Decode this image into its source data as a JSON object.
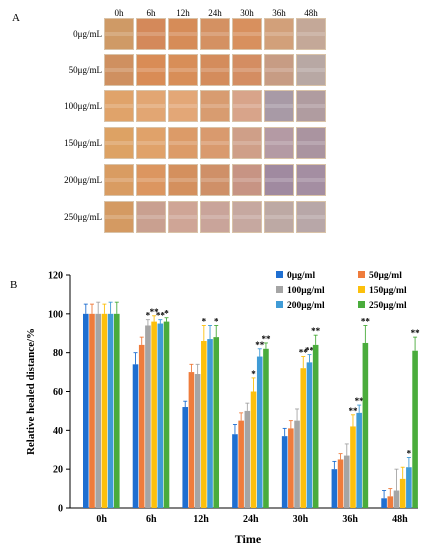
{
  "panel_a": {
    "label": "A",
    "columns": [
      "0h",
      "6h",
      "12h",
      "24h",
      "30h",
      "36h",
      "48h"
    ],
    "rows": [
      "0μg/mL",
      "50μg/mL",
      "100μg/mL",
      "150μg/mL",
      "200μg/mL",
      "250μg/mL"
    ],
    "well_colors": [
      [
        "#cf9a66",
        "#d4895a",
        "#d68c58",
        "#d49162",
        "#d8905e",
        "#d2a07a",
        "#c4a898"
      ],
      [
        "#cf9060",
        "#d98c56",
        "#d88e58",
        "#d48c5c",
        "#d48d62",
        "#c79c84",
        "#b8a8a4"
      ],
      [
        "#e0a36a",
        "#e2a673",
        "#e3a777",
        "#d89c70",
        "#d8a48a",
        "#a89aa6",
        "#b09ca0"
      ],
      [
        "#dda264",
        "#e0a26a",
        "#dc9b68",
        "#d99a6e",
        "#cf9f88",
        "#b49aa4",
        "#aa94a0"
      ],
      [
        "#d99c62",
        "#dc9660",
        "#d4905e",
        "#cf9068",
        "#c79484",
        "#a08aa0",
        "#a48ea2"
      ],
      [
        "#d49a62",
        "#c9a090",
        "#cfa596",
        "#c9a49a",
        "#c6a8a0",
        "#bda9a4",
        "#b8a7a8"
      ]
    ]
  },
  "panel_b": {
    "label": "B"
  },
  "chart_data": {
    "type": "bar",
    "title": "",
    "xlabel": "Time",
    "ylabel": "Relative healed distance/%",
    "ylim": [
      0,
      120
    ],
    "yticks": [
      "0",
      "20",
      "40",
      "60",
      "80",
      "100",
      "120"
    ],
    "categories": [
      "0h",
      "6h",
      "12h",
      "24h",
      "30h",
      "36h",
      "48h"
    ],
    "legend_position": "top-right",
    "series": [
      {
        "name": "0μg/ml",
        "color": "#1f6fd1",
        "values": [
          100,
          74,
          52,
          38,
          37,
          20,
          5
        ],
        "errors": [
          5,
          6,
          3,
          5,
          4,
          4,
          4
        ],
        "sig": [
          "",
          "",
          "",
          "",
          "",
          "",
          ""
        ]
      },
      {
        "name": "50μg/ml",
        "color": "#ef7c3c",
        "values": [
          100,
          84,
          70,
          45,
          41,
          25,
          6
        ],
        "errors": [
          5,
          4,
          4,
          4,
          4,
          3,
          4
        ],
        "sig": [
          "",
          "",
          "",
          "",
          "",
          "",
          ""
        ]
      },
      {
        "name": "100μg/ml",
        "color": "#a5a5a5",
        "values": [
          100,
          94,
          69,
          50,
          45,
          27,
          9
        ],
        "errors": [
          6,
          3,
          5,
          4,
          6,
          6,
          11
        ],
        "sig": [
          "",
          "*",
          "",
          "",
          "",
          "",
          ""
        ]
      },
      {
        "name": "150μg/ml",
        "color": "#fcc00c",
        "values": [
          100,
          96,
          86,
          60,
          72,
          42,
          15
        ],
        "errors": [
          5,
          3,
          8,
          7,
          6,
          6,
          6
        ],
        "sig": [
          "",
          "**",
          "*",
          "*",
          "**",
          "**",
          ""
        ]
      },
      {
        "name": "200μg/ml",
        "color": "#3f9bd6",
        "values": [
          100,
          95,
          87,
          78,
          75,
          49,
          21
        ],
        "errors": [
          6,
          2,
          7,
          4,
          4,
          4,
          5
        ],
        "sig": [
          "",
          "**",
          "",
          "**",
          "**",
          "**",
          "*"
        ]
      },
      {
        "name": "250μg/ml",
        "color": "#4aac3c",
        "values": [
          100,
          96,
          88,
          82,
          84,
          85,
          81
        ],
        "errors": [
          6,
          2,
          6,
          3,
          5,
          9,
          7
        ],
        "sig": [
          "",
          "*",
          "*",
          "**",
          "**",
          "**",
          "**"
        ]
      }
    ]
  }
}
